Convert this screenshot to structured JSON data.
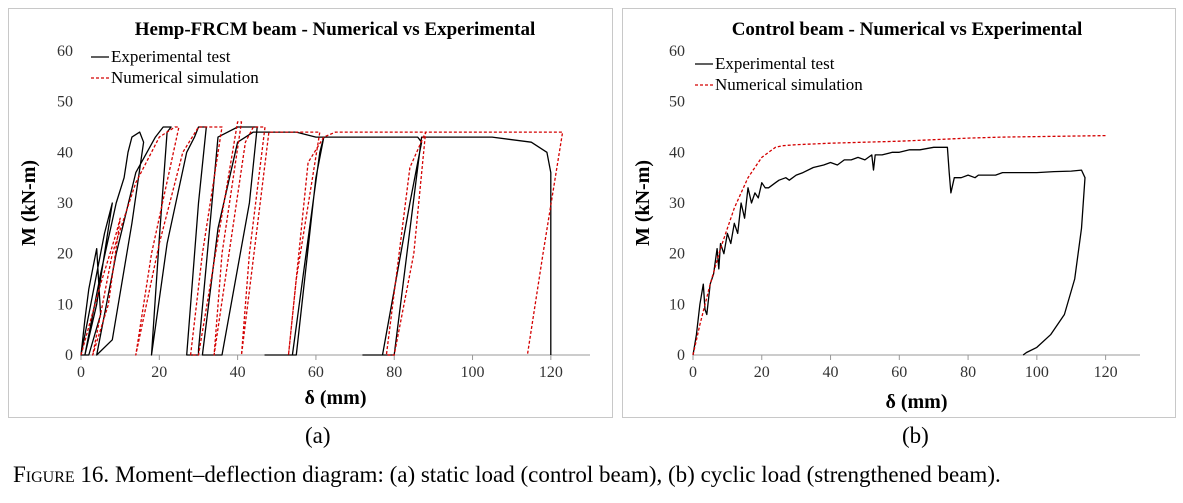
{
  "caption": {
    "figure_word": "Figure 16.",
    "text": " Moment–deflection diagram: (a) static load (control beam), (b) cyclic load (strengthened beam)."
  },
  "subfigure_labels": {
    "a": "(a)",
    "b": "(b)"
  },
  "colors": {
    "experimental": "#000000",
    "numerical": "#d40000",
    "frame": "#c8c8c8"
  },
  "chart_data": [
    {
      "type": "line",
      "title": "Hemp-FRCM beam - Numerical vs Experimental",
      "xlabel": "δ (mm)",
      "ylabel": "M (kN-m)",
      "xlim": [
        0,
        130
      ],
      "ylim": [
        0,
        60
      ],
      "xticks": [
        0,
        20,
        40,
        60,
        80,
        100,
        120
      ],
      "yticks": [
        0,
        10,
        20,
        30,
        40,
        50,
        60
      ],
      "grid": false,
      "legend_position": "top-left",
      "series": [
        {
          "name": "Experimental test",
          "style": "solid",
          "x": [
            0,
            1,
            2,
            3,
            4,
            5,
            2,
            0,
            3,
            6,
            7,
            8,
            4,
            1,
            5,
            9,
            11,
            12,
            13,
            15,
            16,
            13,
            8,
            4,
            9,
            14,
            19,
            21,
            23,
            22,
            20,
            18,
            22,
            27,
            29,
            30,
            32,
            30,
            27,
            30,
            30,
            35,
            40,
            44,
            45,
            43,
            36,
            31,
            35,
            40,
            44,
            46,
            50,
            55,
            60,
            62,
            61,
            54,
            47,
            55,
            60,
            62,
            65,
            70,
            75,
            80,
            86,
            87,
            84,
            77,
            72,
            80,
            86,
            87,
            95,
            105,
            115,
            119,
            120,
            120,
            120
          ],
          "y": [
            0,
            7,
            13,
            17,
            21,
            8,
            0,
            0,
            12,
            24,
            27,
            30,
            10,
            0,
            16,
            30,
            35,
            40,
            43,
            44,
            42,
            26,
            3,
            0,
            20,
            36,
            43,
            45,
            45,
            44,
            23,
            0,
            22,
            40,
            43,
            45,
            45,
            30,
            0,
            0,
            1,
            43,
            45,
            45,
            45,
            30,
            0,
            0,
            25,
            42,
            44,
            44,
            44,
            44,
            43,
            43,
            40,
            0,
            0,
            0,
            35,
            43,
            43,
            43,
            43,
            43,
            43,
            42,
            30,
            0,
            0,
            0,
            37,
            43,
            43,
            43,
            42,
            40,
            36,
            20,
            0
          ]
        },
        {
          "name": "Numerical simulation",
          "style": "dashed",
          "x": [
            0,
            5,
            9,
            10,
            7,
            3,
            8,
            14,
            18,
            20,
            22,
            24,
            25,
            18,
            14,
            20,
            26,
            30,
            32,
            35,
            36,
            31,
            28,
            30,
            40,
            41,
            36,
            34,
            42,
            44,
            46,
            47,
            43,
            41,
            48,
            60,
            61,
            55,
            53,
            58,
            62,
            65,
            75,
            80,
            87,
            88,
            85,
            80,
            78,
            84,
            88,
            95,
            110,
            121,
            123,
            118,
            114
          ],
          "y": [
            0,
            14,
            24,
            27,
            10,
            0,
            20,
            34,
            40,
            43,
            44,
            45,
            45,
            20,
            0,
            22,
            40,
            45,
            45,
            45,
            45,
            20,
            0,
            0,
            46,
            46,
            20,
            0,
            42,
            45,
            45,
            45,
            20,
            0,
            44,
            44,
            44,
            15,
            0,
            38,
            43,
            44,
            44,
            44,
            44,
            44,
            20,
            0,
            0,
            37,
            44,
            44,
            44,
            44,
            44,
            20,
            0
          ]
        }
      ]
    },
    {
      "type": "line",
      "title": "Control beam - Numerical vs Experimental",
      "xlabel": "δ (mm)",
      "ylabel": "M (kN-m)",
      "xlim": [
        0,
        130
      ],
      "ylim": [
        0,
        60
      ],
      "xticks": [
        0,
        20,
        40,
        60,
        80,
        100,
        120
      ],
      "yticks": [
        0,
        10,
        20,
        30,
        40,
        50,
        60
      ],
      "grid": false,
      "legend_position": "top-left",
      "series": [
        {
          "name": "Experimental test",
          "style": "solid",
          "x": [
            0,
            1,
            2,
            3,
            3.5,
            4,
            5,
            6,
            7,
            7.5,
            8,
            9,
            10,
            11,
            12,
            13,
            14,
            15,
            16,
            17,
            18,
            19,
            20,
            21,
            22,
            24,
            25,
            27,
            28,
            30,
            32,
            35,
            38,
            40,
            42,
            44,
            46,
            48,
            50,
            52,
            52.5,
            53,
            55,
            58,
            60,
            63,
            66,
            70,
            73,
            74,
            74.5,
            75,
            76,
            78,
            80,
            82,
            83,
            84,
            86,
            88,
            90,
            95,
            100,
            105,
            110,
            113,
            114,
            113,
            111,
            108,
            104,
            100,
            97,
            96
          ],
          "y": [
            0,
            4,
            10,
            14,
            9,
            8,
            14,
            16,
            21,
            17,
            22,
            20,
            24,
            22,
            26,
            24,
            30,
            27,
            33,
            30,
            32,
            31,
            34,
            33,
            33,
            34,
            34.5,
            35,
            34.5,
            35.5,
            36,
            37,
            37.5,
            38,
            37.5,
            38.5,
            38.5,
            39,
            38.5,
            39.5,
            36.5,
            39.5,
            39.5,
            40,
            40,
            40.5,
            40.5,
            41,
            41,
            41,
            36,
            32,
            35,
            35,
            35.5,
            35,
            35.5,
            35.5,
            35.5,
            35.5,
            36,
            36,
            36,
            36.2,
            36.3,
            36.5,
            35,
            25,
            15,
            8,
            4,
            1.5,
            0.5,
            0
          ]
        },
        {
          "name": "Numerical simulation",
          "style": "dashed",
          "x": [
            0,
            2,
            5,
            8,
            10,
            12,
            14,
            16,
            18,
            20,
            22,
            24,
            26,
            30,
            40,
            50,
            60,
            70,
            80,
            90,
            100,
            110,
            120
          ],
          "y": [
            0,
            6,
            14,
            21,
            25,
            29,
            32,
            35,
            37,
            39,
            40,
            41,
            41.3,
            41.5,
            41.8,
            42,
            42.2,
            42.5,
            42.8,
            43,
            43.1,
            43.2,
            43.3
          ]
        }
      ]
    }
  ]
}
